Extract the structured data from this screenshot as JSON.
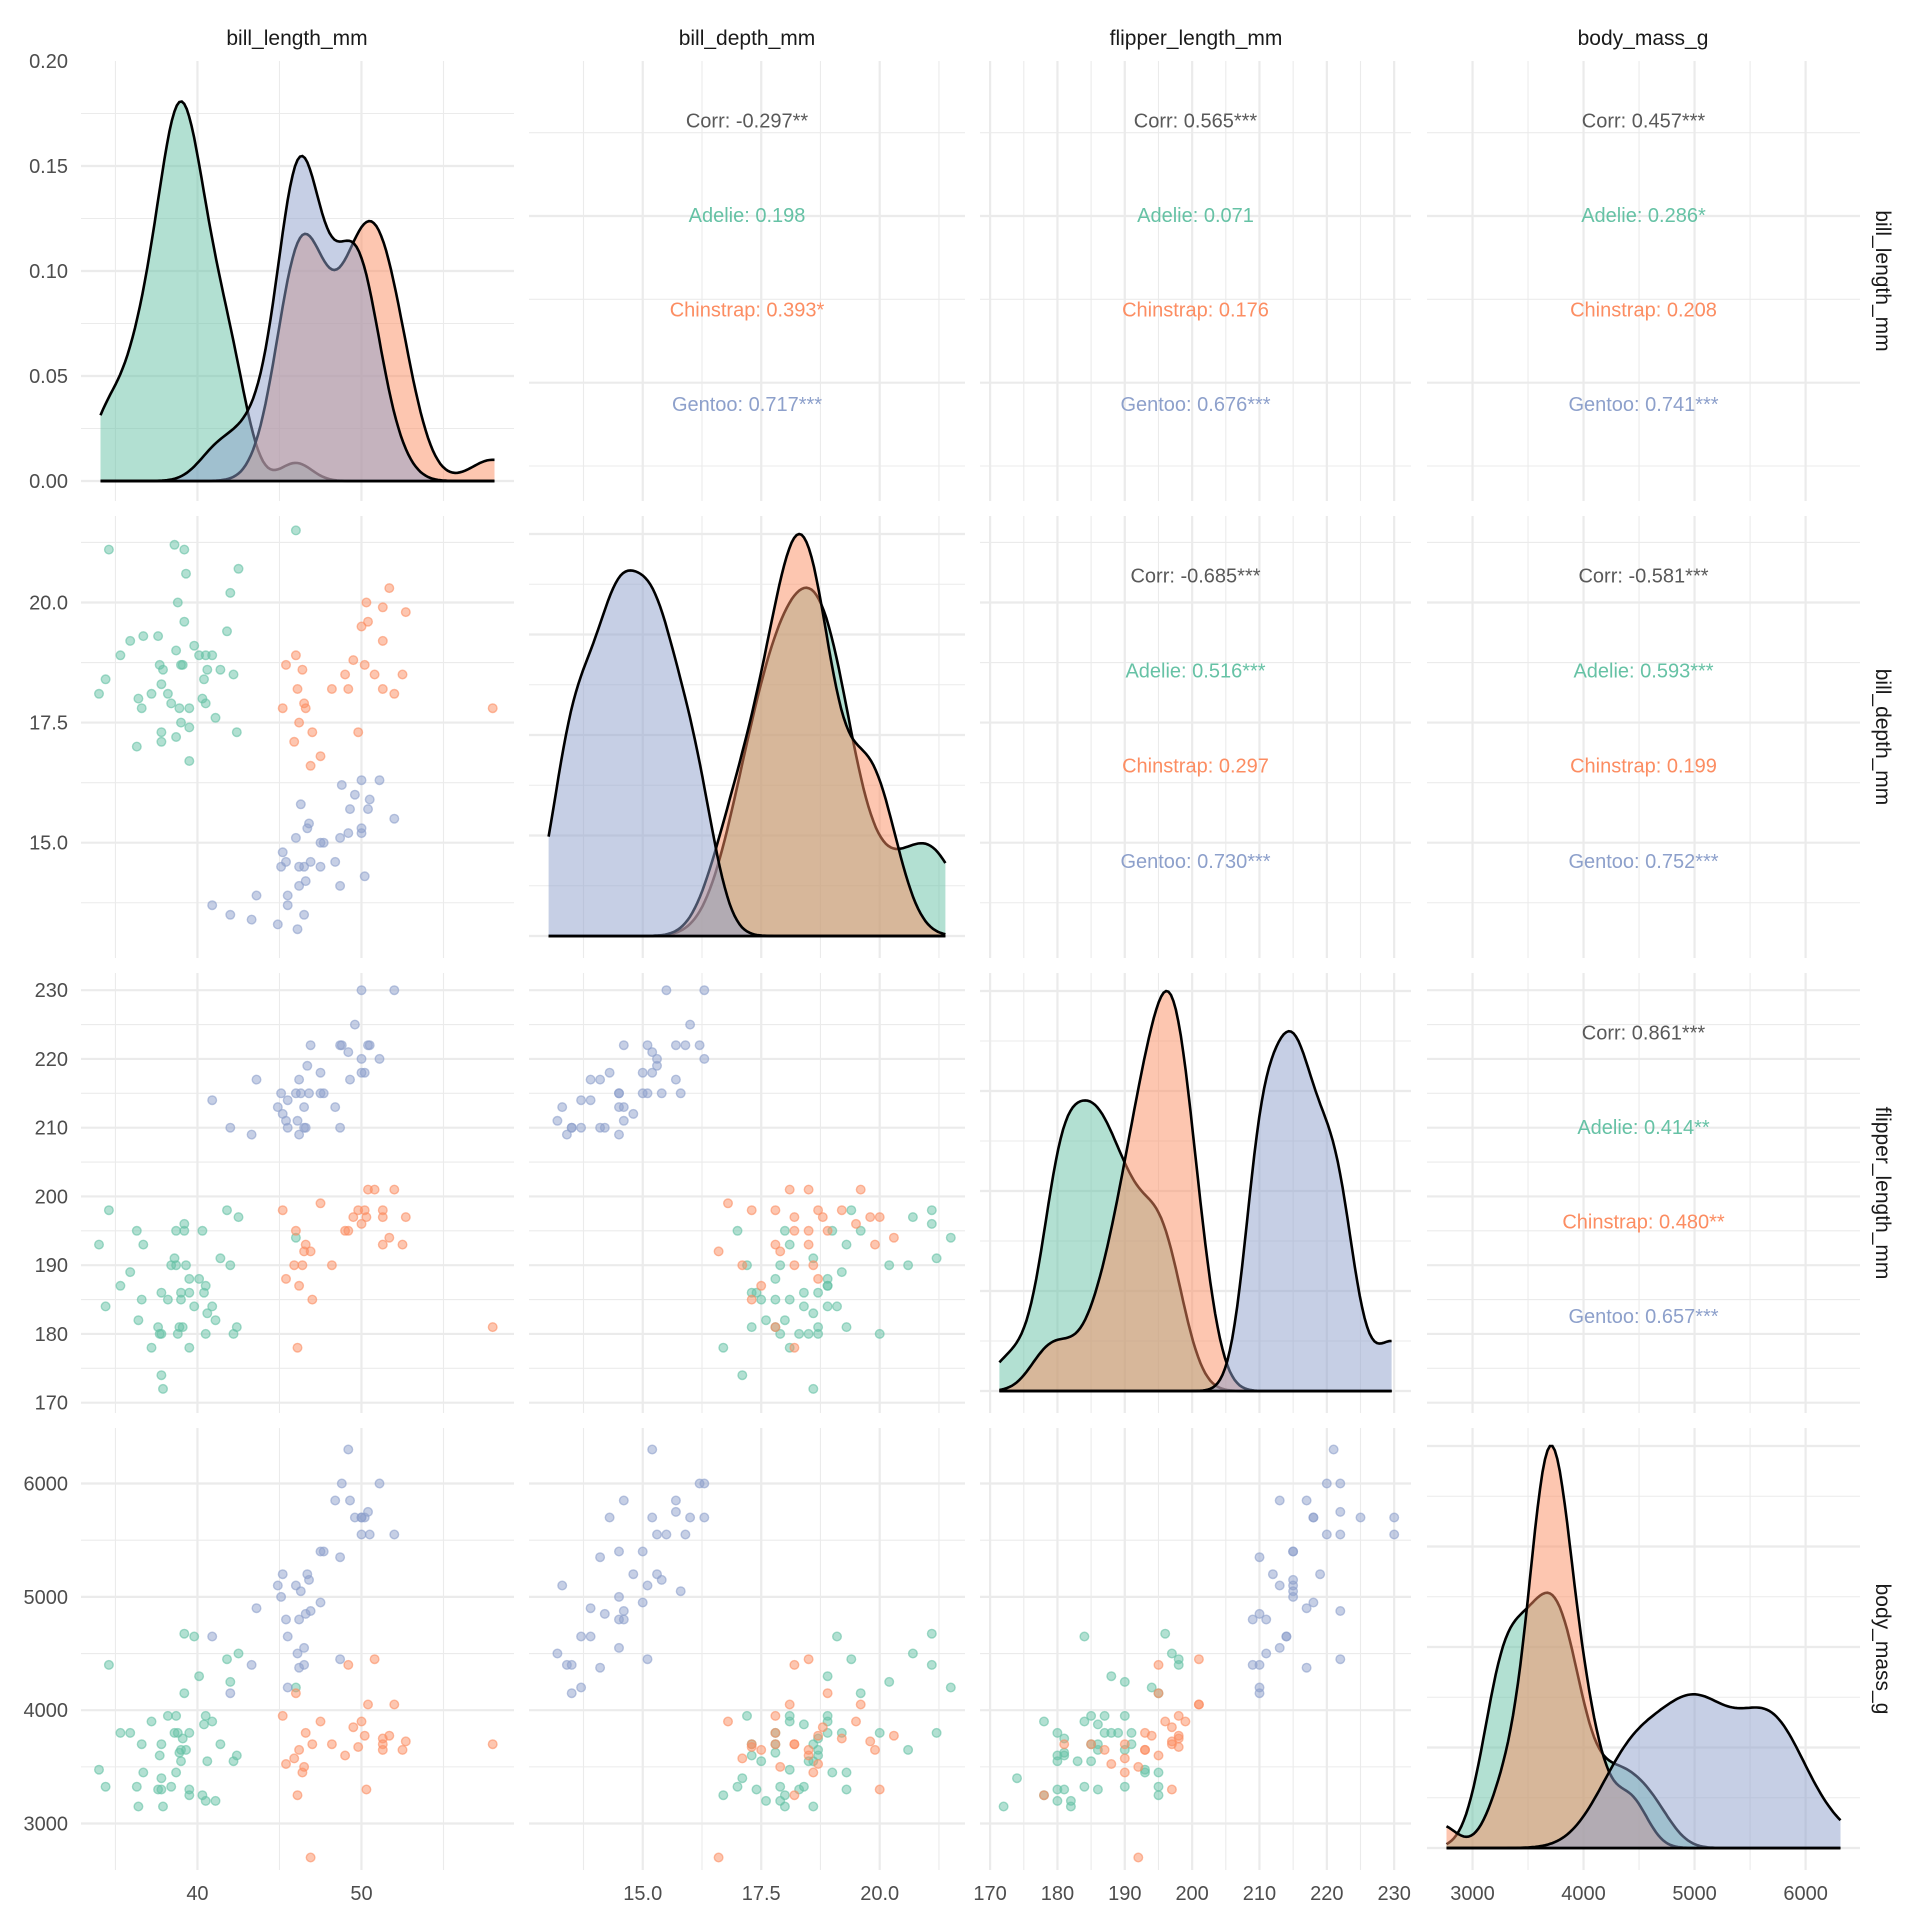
{
  "chart_data": {
    "type": "scatter-matrix",
    "title": "",
    "variables": [
      "bill_length_mm",
      "bill_depth_mm",
      "flipper_length_mm",
      "body_mass_g"
    ],
    "species": [
      {
        "name": "Adelie",
        "color": "#66C2A5"
      },
      {
        "name": "Chinstrap",
        "color": "#FC8D62"
      },
      {
        "name": "Gentoo",
        "color": "#8DA0CB"
      }
    ],
    "overall_text_color": "#595959",
    "axes": {
      "bill_length_mm": {
        "range": [
          32.9,
          59.3
        ],
        "major": [
          40,
          50
        ],
        "minor": [
          35,
          45,
          55
        ],
        "tick_labels": [
          "40",
          "50"
        ]
      },
      "bill_depth_mm": {
        "range": [
          12.6,
          21.8
        ],
        "major": [
          15.0,
          17.5,
          20.0
        ],
        "minor": [
          13.75,
          16.25,
          18.75,
          21.25
        ],
        "tick_labels": [
          "15.0",
          "17.5",
          "20.0"
        ]
      },
      "flipper_length_mm": {
        "range": [
          168.5,
          232.5
        ],
        "major": [
          170,
          180,
          190,
          200,
          210,
          220,
          230
        ],
        "minor": [
          175,
          185,
          195,
          205,
          215,
          225
        ],
        "tick_labels": [
          "170",
          "180",
          "190",
          "200",
          "210",
          "220",
          "230"
        ]
      },
      "body_mass_g": {
        "range": [
          2590,
          6490
        ],
        "major": [
          3000,
          4000,
          5000,
          6000
        ],
        "minor": [
          2500,
          3500,
          4500,
          5500
        ],
        "tick_labels": [
          "3000",
          "4000",
          "5000",
          "6000"
        ]
      }
    },
    "density_axis": {
      "range": [
        0,
        0.2
      ],
      "major": [
        0.0,
        0.05,
        0.1,
        0.15,
        0.2
      ],
      "tick_labels": [
        "0.00",
        "0.05",
        "0.10",
        "0.15",
        "0.20"
      ]
    },
    "correlations": [
      {
        "row": "bill_length_mm",
        "col": "bill_depth_mm",
        "lines": [
          "Corr: -0.297**",
          "Adelie: 0.198",
          "Chinstrap: 0.393*",
          "Gentoo: 0.717***"
        ]
      },
      {
        "row": "bill_length_mm",
        "col": "flipper_length_mm",
        "lines": [
          "Corr: 0.565***",
          "Adelie: 0.071",
          "Chinstrap: 0.176",
          "Gentoo: 0.676***"
        ]
      },
      {
        "row": "bill_length_mm",
        "col": "body_mass_g",
        "lines": [
          "Corr: 0.457***",
          "Adelie: 0.286*",
          "Chinstrap: 0.208",
          "Gentoo: 0.741***"
        ]
      },
      {
        "row": "bill_depth_mm",
        "col": "flipper_length_mm",
        "lines": [
          "Corr: -0.685***",
          "Adelie: 0.516***",
          "Chinstrap: 0.297",
          "Gentoo: 0.730***"
        ]
      },
      {
        "row": "bill_depth_mm",
        "col": "body_mass_g",
        "lines": [
          "Corr: -0.581***",
          "Adelie: 0.593***",
          "Chinstrap: 0.199",
          "Gentoo: 0.752***"
        ]
      },
      {
        "row": "flipper_length_mm",
        "col": "body_mass_g",
        "lines": [
          "Corr: 0.861***",
          "Adelie: 0.414**",
          "Chinstrap: 0.480**",
          "Gentoo: 0.657***"
        ]
      }
    ],
    "points_columns": [
      "bill_length_mm",
      "bill_depth_mm",
      "flipper_length_mm",
      "body_mass_g"
    ],
    "points": {
      "Adelie": [
        [
          34.0,
          18.1,
          193,
          3475
        ],
        [
          34.4,
          18.4,
          184,
          3325
        ],
        [
          34.6,
          21.1,
          198,
          4400
        ],
        [
          35.3,
          18.9,
          187,
          3800
        ],
        [
          35.9,
          19.2,
          189,
          3800
        ],
        [
          36.3,
          17.0,
          195,
          3325
        ],
        [
          36.4,
          18.0,
          182,
          3150
        ],
        [
          36.6,
          17.8,
          185,
          3700
        ],
        [
          36.7,
          19.3,
          193,
          3450
        ],
        [
          37.2,
          18.1,
          178,
          3900
        ],
        [
          37.6,
          19.3,
          181,
          3300
        ],
        [
          37.7,
          18.7,
          180,
          3600
        ],
        [
          37.8,
          18.3,
          180,
          3300
        ],
        [
          37.8,
          17.3,
          186,
          3700
        ],
        [
          37.8,
          17.1,
          174,
          3400
        ],
        [
          37.9,
          18.6,
          172,
          3150
        ],
        [
          38.2,
          18.1,
          185,
          3950
        ],
        [
          38.4,
          17.9,
          190,
          3325
        ],
        [
          38.6,
          21.2,
          191,
          3800
        ],
        [
          38.7,
          19.0,
          195,
          3450
        ],
        [
          38.7,
          17.2,
          190,
          3950
        ],
        [
          38.8,
          20.0,
          180,
          3800
        ],
        [
          38.9,
          17.8,
          181,
          3625
        ],
        [
          39.0,
          18.7,
          186,
          3650
        ],
        [
          39.0,
          17.5,
          185,
          3550
        ],
        [
          39.1,
          18.7,
          181,
          3750
        ],
        [
          39.2,
          21.1,
          196,
          4675
        ],
        [
          39.2,
          19.6,
          195,
          4150
        ],
        [
          39.3,
          20.6,
          190,
          3650
        ],
        [
          39.5,
          17.8,
          188,
          3800
        ],
        [
          39.5,
          17.4,
          186,
          3300
        ],
        [
          39.5,
          16.7,
          178,
          3250
        ],
        [
          39.8,
          19.1,
          184,
          4650
        ],
        [
          40.1,
          18.9,
          188,
          4300
        ],
        [
          40.3,
          18.0,
          195,
          3250
        ],
        [
          40.4,
          18.4,
          186,
          3875
        ],
        [
          40.5,
          18.9,
          187,
          3950
        ],
        [
          40.5,
          17.9,
          180,
          3200
        ],
        [
          40.6,
          18.6,
          183,
          3550
        ],
        [
          40.9,
          18.9,
          184,
          3900
        ],
        [
          41.1,
          17.6,
          182,
          3200
        ],
        [
          41.4,
          18.6,
          191,
          3700
        ],
        [
          41.8,
          19.4,
          198,
          4450
        ],
        [
          42.0,
          20.2,
          190,
          4250
        ],
        [
          42.2,
          18.5,
          180,
          3550
        ],
        [
          42.4,
          17.3,
          181,
          3600
        ],
        [
          42.5,
          20.7,
          197,
          4500
        ],
        [
          46.0,
          21.5,
          194,
          4200
        ]
      ],
      "Chinstrap": [
        [
          45.2,
          17.8,
          198,
          3950
        ],
        [
          45.4,
          18.7,
          188,
          3525
        ],
        [
          45.9,
          17.1,
          190,
          3575
        ],
        [
          46.0,
          18.9,
          195,
          4150
        ],
        [
          46.1,
          18.2,
          178,
          3250
        ],
        [
          46.2,
          17.5,
          187,
          3650
        ],
        [
          46.4,
          18.6,
          190,
          3450
        ],
        [
          46.5,
          17.9,
          192,
          3500
        ],
        [
          46.6,
          17.8,
          193,
          3800
        ],
        [
          46.9,
          16.6,
          192,
          2700
        ],
        [
          47.0,
          17.3,
          185,
          3700
        ],
        [
          47.5,
          16.8,
          199,
          3900
        ],
        [
          48.2,
          18.2,
          190,
          3700
        ],
        [
          49.0,
          18.5,
          195,
          3600
        ],
        [
          49.2,
          18.2,
          195,
          4400
        ],
        [
          49.5,
          18.8,
          197,
          3850
        ],
        [
          49.8,
          17.3,
          198,
          3675
        ],
        [
          50.0,
          19.5,
          196,
          3900
        ],
        [
          50.2,
          18.7,
          198,
          3775
        ],
        [
          50.3,
          20.0,
          197,
          3300
        ],
        [
          50.4,
          19.6,
          201,
          4050
        ],
        [
          50.8,
          18.5,
          201,
          4450
        ],
        [
          51.3,
          19.2,
          198,
          3750
        ],
        [
          51.3,
          18.2,
          197,
          3700
        ],
        [
          51.3,
          19.9,
          193,
          3650
        ],
        [
          51.7,
          20.3,
          194,
          3775
        ],
        [
          52.0,
          18.1,
          201,
          4050
        ],
        [
          52.5,
          18.5,
          193,
          3650
        ],
        [
          52.7,
          19.8,
          197,
          3725
        ],
        [
          58.0,
          17.8,
          181,
          3700
        ]
      ],
      "Gentoo": [
        [
          40.9,
          13.7,
          214,
          4650
        ],
        [
          42.0,
          13.5,
          210,
          4150
        ],
        [
          43.3,
          13.4,
          209,
          4400
        ],
        [
          43.6,
          13.9,
          217,
          4900
        ],
        [
          44.9,
          13.3,
          213,
          5100
        ],
        [
          45.1,
          14.5,
          215,
          5000
        ],
        [
          45.2,
          14.8,
          212,
          5200
        ],
        [
          45.4,
          14.6,
          211,
          4800
        ],
        [
          45.5,
          13.9,
          214,
          4650
        ],
        [
          45.5,
          13.7,
          210,
          4200
        ],
        [
          46.0,
          15.1,
          215,
          5100
        ],
        [
          46.1,
          13.2,
          211,
          4500
        ],
        [
          46.2,
          14.1,
          217,
          4375
        ],
        [
          46.2,
          14.5,
          209,
          4800
        ],
        [
          46.3,
          15.8,
          215,
          5050
        ],
        [
          46.5,
          14.5,
          213,
          4550
        ],
        [
          46.5,
          13.5,
          210,
          4400
        ],
        [
          46.6,
          14.2,
          210,
          4850
        ],
        [
          46.7,
          15.3,
          219,
          5200
        ],
        [
          46.8,
          15.4,
          215,
          5150
        ],
        [
          46.9,
          14.6,
          222,
          4875
        ],
        [
          47.5,
          15.0,
          218,
          4950
        ],
        [
          47.5,
          14.5,
          215,
          5400
        ],
        [
          47.7,
          15.0,
          215,
          5400
        ],
        [
          48.4,
          14.6,
          213,
          5850
        ],
        [
          48.7,
          14.1,
          210,
          5350
        ],
        [
          48.7,
          15.1,
          222,
          4450
        ],
        [
          48.8,
          16.2,
          222,
          6000
        ],
        [
          49.2,
          15.2,
          221,
          6300
        ],
        [
          49.3,
          15.7,
          217,
          5850
        ],
        [
          49.6,
          16.0,
          225,
          5700
        ],
        [
          50.0,
          16.3,
          230,
          5700
        ],
        [
          50.0,
          15.3,
          220,
          5550
        ],
        [
          50.0,
          15.2,
          218,
          5700
        ],
        [
          50.2,
          14.3,
          218,
          5700
        ],
        [
          50.4,
          15.7,
          222,
          5750
        ],
        [
          50.5,
          15.9,
          222,
          5550
        ],
        [
          51.1,
          16.3,
          220,
          6000
        ],
        [
          52.0,
          15.5,
          230,
          5550
        ]
      ]
    }
  }
}
